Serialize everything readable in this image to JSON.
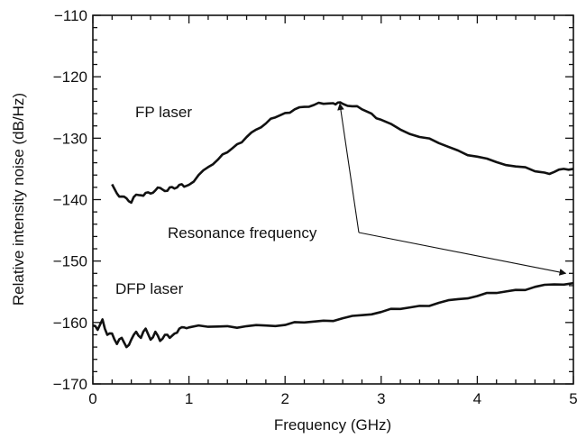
{
  "chart_data": {
    "type": "line",
    "title": "",
    "xlabel": "Frequency (GHz)",
    "ylabel": "Relative intensity noise (dB/Hz)",
    "xlim": [
      0,
      5
    ],
    "ylim": [
      -170,
      -110
    ],
    "x_ticks": [
      0,
      1,
      2,
      3,
      4,
      5
    ],
    "y_ticks": [
      -170,
      -160,
      -150,
      -140,
      -130,
      -120,
      -110
    ],
    "x_tick_labels": [
      "0",
      "1",
      "2",
      "3",
      "4",
      "5"
    ],
    "y_tick_labels": [
      "−170",
      "−160",
      "−150",
      "−140",
      "−130",
      "−120",
      "−110"
    ],
    "grid": false,
    "line_color": "#111111",
    "series": [
      {
        "label_text": "FP laser",
        "x": [
          0.2,
          0.25,
          0.3,
          0.35,
          0.4,
          0.45,
          0.5,
          0.55,
          0.6,
          0.65,
          0.7,
          0.75,
          0.8,
          0.85,
          0.9,
          0.95,
          1.0,
          1.1,
          1.2,
          1.3,
          1.4,
          1.5,
          1.6,
          1.7,
          1.8,
          1.9,
          2.0,
          2.1,
          2.2,
          2.3,
          2.4,
          2.5,
          2.55,
          2.6,
          2.7,
          2.8,
          2.9,
          3.0,
          3.2,
          3.4,
          3.6,
          3.8,
          4.0,
          4.2,
          4.4,
          4.6,
          4.7,
          4.8,
          4.9,
          5.0
        ],
        "y": [
          -137.5,
          -139.0,
          -139.5,
          -139.8,
          -140.5,
          -139.2,
          -139.3,
          -138.9,
          -139.0,
          -138.5,
          -138.1,
          -138.6,
          -138.0,
          -138.2,
          -137.6,
          -137.9,
          -137.6,
          -136.0,
          -134.7,
          -133.5,
          -132.3,
          -131.0,
          -129.8,
          -128.6,
          -127.6,
          -126.6,
          -125.9,
          -125.3,
          -124.9,
          -124.6,
          -124.4,
          -124.3,
          -124.2,
          -124.4,
          -124.8,
          -125.3,
          -126.0,
          -127.0,
          -128.6,
          -129.8,
          -130.8,
          -132.0,
          -133.0,
          -133.9,
          -134.6,
          -135.4,
          -135.6,
          -135.5,
          -135.0,
          -135.0
        ]
      },
      {
        "label_text": "DFP laser",
        "x": [
          0.0,
          0.05,
          0.1,
          0.15,
          0.2,
          0.25,
          0.3,
          0.35,
          0.4,
          0.45,
          0.5,
          0.55,
          0.6,
          0.65,
          0.7,
          0.75,
          0.8,
          0.85,
          0.9,
          0.95,
          1.0,
          1.2,
          1.4,
          1.6,
          1.8,
          2.0,
          2.2,
          2.4,
          2.6,
          2.8,
          3.0,
          3.2,
          3.4,
          3.6,
          3.8,
          4.0,
          4.2,
          4.4,
          4.6,
          4.8,
          5.0
        ],
        "y": [
          -160.5,
          -161.2,
          -159.5,
          -162.0,
          -161.8,
          -163.5,
          -162.5,
          -164.0,
          -162.8,
          -161.5,
          -162.5,
          -161.0,
          -162.8,
          -161.5,
          -163.0,
          -162.0,
          -162.5,
          -161.8,
          -161.0,
          -160.8,
          -160.8,
          -160.7,
          -160.6,
          -160.6,
          -160.5,
          -160.4,
          -160.0,
          -159.7,
          -159.3,
          -158.8,
          -158.3,
          -157.8,
          -157.3,
          -156.8,
          -156.2,
          -155.7,
          -155.2,
          -154.7,
          -154.2,
          -153.8,
          -153.6
        ]
      }
    ],
    "annotations": [
      {
        "text": "Resonance frequency",
        "arrows_to": [
          [
            2.57,
            -124.4
          ],
          [
            4.92,
            -152.0
          ]
        ]
      }
    ]
  }
}
